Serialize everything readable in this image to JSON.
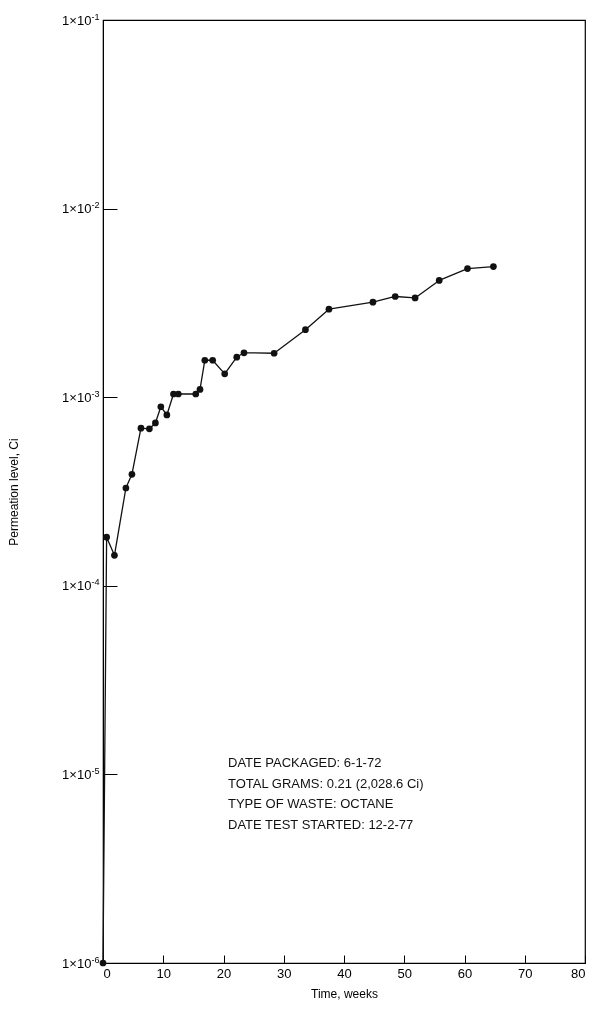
{
  "chart_data": {
    "type": "line",
    "xlabel": "Time, weeks",
    "ylabel": "Permeation level, Ci",
    "x": [
      0,
      0.6,
      1.9,
      3.8,
      4.8,
      6.3,
      7.7,
      8.7,
      9.6,
      10.6,
      11.7,
      12.5,
      15.4,
      16.1,
      16.9,
      18.2,
      20.2,
      22.2,
      23.4,
      28.4,
      33.6,
      37.5,
      44.8,
      48.5,
      51.8,
      55.8,
      60.5,
      64.8
    ],
    "series": [
      {
        "color": "#111111",
        "values": [
          1e-06,
          0.000181,
          0.000145,
          0.00033,
          0.00039,
          0.000685,
          0.00068,
          0.00073,
          0.00089,
          0.000805,
          0.00104,
          0.00104,
          0.00104,
          0.0011,
          0.00157,
          0.00157,
          0.00133,
          0.00163,
          0.00172,
          0.00171,
          0.00228,
          0.00293,
          0.00319,
          0.00342,
          0.00336,
          0.00416,
          0.00481,
          0.00493
        ]
      }
    ],
    "log": "y",
    "xlim": [
      0,
      80
    ],
    "xticks": [
      0,
      10,
      20,
      30,
      40,
      50,
      60,
      70,
      80
    ],
    "ylim": [
      1e-06,
      0.1
    ],
    "yticks": [
      {
        "value": 1e-06,
        "label": "1×10$^{-6}$"
      },
      {
        "value": 1e-05,
        "label": "1×10$^{-5}$"
      },
      {
        "value": 0.0001,
        "label": "1×10$^{-4}$"
      },
      {
        "value": 0.001,
        "label": "1×10$^{-3}$"
      },
      {
        "value": 0.01,
        "label": "1×10$^{-2}$"
      },
      {
        "value": 0.1,
        "label": "1×10$^{-1}$"
      }
    ],
    "grid": false,
    "marker": "circle",
    "line_style": "solid",
    "annotations": [
      "DATE PACKAGED: 6-1-72",
      "TOTAL GRAMS: 0.21 (2,028.6 Ci)",
      "TYPE OF WASTE: OCTANE",
      "DATE TEST STARTED: 12-2-77"
    ]
  }
}
